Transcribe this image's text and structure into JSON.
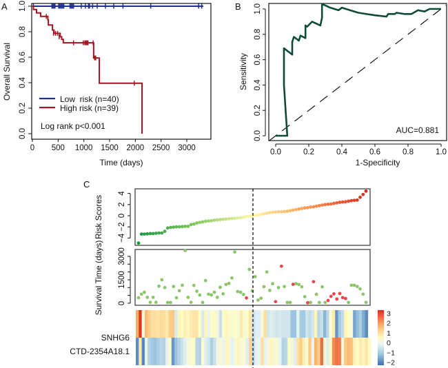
{
  "chart_data": [
    {
      "panel": "A",
      "type": "line",
      "subtype": "kaplan-meier",
      "title": "",
      "xlabel": "Time (days)",
      "ylabel": "Overall Survival",
      "xlim": [
        0,
        3400
      ],
      "ylim": [
        0,
        1
      ],
      "xticks": [
        0,
        500,
        1000,
        1500,
        2000,
        2500,
        3000
      ],
      "yticks": [
        "0.0",
        "0.2",
        "0.4",
        "0.6",
        "0.8",
        "1.0"
      ],
      "legend": {
        "placement": "bottom-left",
        "entries": [
          "Low  risk (n=40)",
          "High risk (n=39)"
        ]
      },
      "annotation": "Log rank p<0.001",
      "series": [
        {
          "name": "Low  risk (n=40)",
          "color": "#1f2f8f",
          "steps": [
            [
              0,
              1.0
            ],
            [
              3320,
              1.0
            ]
          ],
          "censor_times": [
            20,
            380,
            400,
            420,
            440,
            510,
            530,
            550,
            570,
            590,
            610,
            730,
            750,
            770,
            790,
            800,
            950,
            1030,
            1090,
            1110,
            1170,
            1260,
            1420,
            1580,
            1760,
            2300,
            3230,
            3290
          ]
        },
        {
          "name": "High risk (n=39)",
          "color": "#a31621",
          "steps": [
            [
              0,
              1.0
            ],
            [
              20,
              0.974
            ],
            [
              80,
              0.947
            ],
            [
              160,
              0.92
            ],
            [
              300,
              0.893
            ],
            [
              310,
              0.853
            ],
            [
              390,
              0.813
            ],
            [
              420,
              0.787
            ],
            [
              540,
              0.76
            ],
            [
              570,
              0.74
            ],
            [
              600,
              0.713
            ],
            [
              1180,
              0.713
            ],
            [
              1190,
              0.594
            ],
            [
              1290,
              0.594
            ],
            [
              1300,
              0.396
            ],
            [
              2130,
              0.396
            ],
            [
              2130,
              0.0
            ]
          ],
          "censor_times_values": [
            [
              270,
              0.92
            ],
            [
              410,
              0.787
            ],
            [
              450,
              0.787
            ],
            [
              490,
              0.787
            ],
            [
              520,
              0.76
            ],
            [
              800,
              0.713
            ],
            [
              990,
              0.713
            ],
            [
              1020,
              0.713
            ],
            [
              1040,
              0.713
            ],
            [
              1060,
              0.713
            ],
            [
              1080,
              0.713
            ],
            [
              1180,
              0.713
            ],
            [
              1210,
              0.594
            ],
            [
              1230,
              0.594
            ],
            [
              1980,
              0.396
            ]
          ]
        }
      ]
    },
    {
      "panel": "B",
      "type": "line",
      "subtype": "roc",
      "xlabel": "1-Specificity",
      "ylabel": "Sensitivity",
      "xlim": [
        0,
        1
      ],
      "ylim": [
        0,
        1
      ],
      "xticks": [
        "0.0",
        "0.2",
        "0.4",
        "0.6",
        "0.8",
        "1.0"
      ],
      "yticks": [
        "0.0",
        "0.2",
        "0.4",
        "0.6",
        "0.8",
        "1.0"
      ],
      "annotation": "AUC=0.881",
      "series": [
        {
          "name": "ROC",
          "color": "#0e4a3a",
          "points": [
            [
              0.0,
              0.0
            ],
            [
              0.07,
              0.0
            ],
            [
              0.05,
              0.4
            ],
            [
              0.05,
              0.69
            ],
            [
              0.1,
              0.64
            ],
            [
              0.1,
              0.74
            ],
            [
              0.11,
              0.78
            ],
            [
              0.14,
              0.75
            ],
            [
              0.15,
              0.79
            ],
            [
              0.18,
              0.77
            ],
            [
              0.18,
              0.87
            ],
            [
              0.19,
              0.86
            ],
            [
              0.22,
              0.9
            ],
            [
              0.27,
              0.87
            ],
            [
              0.28,
              0.93
            ],
            [
              0.28,
              1.04
            ],
            [
              0.33,
              1.01
            ],
            [
              0.38,
              0.99
            ],
            [
              0.4,
              1.01
            ],
            [
              0.45,
              0.99
            ],
            [
              0.5,
              0.97
            ],
            [
              0.55,
              0.96
            ],
            [
              0.6,
              0.95
            ],
            [
              0.67,
              0.94
            ],
            [
              0.68,
              0.96
            ],
            [
              0.72,
              0.96
            ],
            [
              0.73,
              0.97
            ],
            [
              0.78,
              0.96
            ],
            [
              0.82,
              0.96
            ],
            [
              0.86,
              0.99
            ],
            [
              0.9,
              0.98
            ],
            [
              0.93,
              1.0
            ],
            [
              0.97,
              1.0
            ],
            [
              1.0,
              1.0
            ]
          ]
        },
        {
          "name": "reference",
          "color": "#111111",
          "dashed": true,
          "points": [
            [
              0,
              0
            ],
            [
              1,
              1
            ]
          ]
        }
      ]
    },
    {
      "panel": "C-risk",
      "type": "scatter",
      "ylabel": "Risk Scores",
      "ylim": [
        -5,
        4.6
      ],
      "yticks": [
        4,
        2,
        0,
        -2,
        -4
      ],
      "cutoff_index": 39.5,
      "n": 79,
      "values": [
        -4.9,
        -3.3,
        -3.3,
        -3.25,
        -3.2,
        -3.2,
        -3.15,
        -3.1,
        -3.1,
        -2.8,
        -2.2,
        -2.1,
        -2.05,
        -2.0,
        -2.0,
        -1.95,
        -1.9,
        -1.9,
        -1.6,
        -1.5,
        -1.3,
        -1.2,
        -1.1,
        -1.0,
        -0.95,
        -0.9,
        -0.8,
        -0.75,
        -0.7,
        -0.65,
        -0.6,
        -0.55,
        -0.5,
        -0.45,
        -0.4,
        -0.35,
        -0.25,
        -0.15,
        -0.1,
        -0.05,
        0.05,
        0.15,
        0.25,
        0.35,
        0.45,
        0.55,
        0.6,
        0.65,
        0.7,
        0.7,
        0.75,
        0.8,
        0.9,
        1.0,
        1.1,
        1.2,
        1.3,
        1.4,
        1.45,
        1.55,
        1.6,
        1.7,
        1.8,
        1.9,
        2.0,
        2.05,
        2.1,
        2.2,
        2.3,
        2.4,
        2.45,
        2.5,
        2.6,
        2.7,
        2.75,
        2.8,
        3.3,
        3.8,
        4.4
      ]
    },
    {
      "panel": "C-survival",
      "type": "scatter",
      "ylabel": "Survival Time (days)",
      "ylim": [
        0,
        3400
      ],
      "yticks": [
        0,
        1500,
        3000
      ],
      "series": [
        {
          "name": "Alive",
          "color": "#8cc66a",
          "points": [
            [
              1,
              350
            ],
            [
              2,
              580
            ],
            [
              3,
              700
            ],
            [
              4,
              380
            ],
            [
              5,
              60
            ],
            [
              6,
              380
            ],
            [
              7,
              60
            ],
            [
              8,
              1090
            ],
            [
              9,
              1500
            ],
            [
              10,
              1000
            ],
            [
              11,
              50
            ],
            [
              12,
              50
            ],
            [
              13,
              1070
            ],
            [
              14,
              350
            ],
            [
              15,
              800
            ],
            [
              16,
              1150
            ],
            [
              17,
              3370
            ],
            [
              18,
              380
            ],
            [
              19,
              60
            ],
            [
              20,
              1140
            ],
            [
              21,
              770
            ],
            [
              22,
              520
            ],
            [
              23,
              50
            ],
            [
              24,
              1450
            ],
            [
              25,
              580
            ],
            [
              26,
              530
            ],
            [
              27,
              700
            ],
            [
              28,
              380
            ],
            [
              29,
              1020
            ],
            [
              30,
              600
            ],
            [
              31,
              1200
            ],
            [
              32,
              1270
            ],
            [
              33,
              1620
            ],
            [
              34,
              3280
            ],
            [
              35,
              750
            ],
            [
              36,
              700
            ],
            [
              37,
              560
            ],
            [
              38,
              2170
            ],
            [
              39,
              800
            ],
            [
              40,
              1700
            ],
            [
              41,
              200
            ],
            [
              42,
              320
            ],
            [
              43,
              1060
            ],
            [
              44,
              2000
            ],
            [
              45,
              820
            ],
            [
              46,
              1250
            ],
            [
              47,
              1000
            ],
            [
              48,
              1070
            ],
            [
              49,
              50
            ],
            [
              50,
              50
            ],
            [
              51,
              1250
            ],
            [
              52,
              1200
            ],
            [
              53,
              1050
            ],
            [
              54,
              420
            ],
            [
              55,
              50
            ],
            [
              56,
              570
            ],
            [
              57,
              50
            ],
            [
              58,
              1050
            ],
            [
              59,
              50
            ],
            [
              60,
              50
            ],
            [
              61,
              1150
            ],
            [
              62,
              1150
            ],
            [
              63,
              1070
            ],
            [
              64,
              920
            ],
            [
              65,
              580
            ],
            [
              66,
              50
            ]
          ]
        },
        {
          "name": "Dead",
          "color": "#e8464e",
          "points": [
            [
              1,
              340
            ],
            [
              2,
              100
            ],
            [
              3,
              2370
            ],
            [
              4,
              1210
            ],
            [
              5,
              30
            ],
            [
              6,
              1380
            ],
            [
              7,
              180
            ],
            [
              8,
              440
            ],
            [
              9,
              600
            ],
            [
              10,
              270
            ],
            [
              11,
              620
            ],
            [
              12,
              360
            ],
            [
              13,
              300
            ]
          ]
        }
      ],
      "dead_x_index": [
        37,
        47,
        49,
        53,
        58,
        60,
        65,
        66,
        67,
        68,
        69,
        70,
        71
      ]
    },
    {
      "panel": "C-heatmap",
      "type": "heatmap",
      "rows": [
        "SNHG6",
        "CTD-2354A18.1"
      ],
      "colorbar": {
        "ticks": [
          "3",
          "2",
          "1",
          "0",
          "−1",
          "−2"
        ],
        "range": [
          -2.3,
          3.3
        ],
        "colors": [
          "#3a6fb0",
          "#9ec6e0",
          "#e8f4f2",
          "#fffcc4",
          "#fdc27a",
          "#f47a4a",
          "#d7301f"
        ]
      },
      "values": [
        [
          1.8,
          3.2,
          0.2,
          1.6,
          1.3,
          1.0,
          1.0,
          0.9,
          1.1,
          1.0,
          0.8,
          1.3,
          1.4,
          -0.4,
          0.6,
          0.5,
          0.7,
          0.6,
          0.8,
          0.9,
          0.9,
          0.5,
          -0.4,
          0.6,
          -0.2,
          0.5,
          0.4,
          0.1,
          -0.6,
          0.5,
          0.6,
          0.4,
          0.3,
          0.5,
          0.2,
          0.8,
          0.3,
          0.5,
          0.9,
          -0.6,
          -0.3,
          -0.3,
          0.2,
          1.0,
          -0.5,
          -0.3,
          -0.4,
          -0.5,
          -0.4,
          -0.5,
          -0.5,
          -0.5,
          -1.2,
          -1.2,
          -0.2,
          -1.0,
          -1.1,
          -0.5,
          -0.7,
          -0.5,
          0.6,
          -0.8,
          -0.6,
          -1.4,
          -0.8,
          0.3,
          0.8,
          -1.8,
          -1.1,
          -0.7,
          0.6,
          0.5,
          0.2,
          -1.6,
          -1.3,
          -1.0,
          -1.5,
          -1.9
        ],
        [
          -1.9,
          0.8,
          -2.0,
          -0.2,
          -0.9,
          -1.1,
          -1.2,
          -1.0,
          -0.8,
          -0.9,
          -0.2,
          0.4,
          -1.8,
          -1.2,
          -0.9,
          -0.6,
          -0.3,
          0.2,
          0.3,
          0.5,
          -0.8,
          -0.9,
          0.4,
          -0.3,
          -0.5,
          -1.0,
          -0.6,
          0.1,
          0.2,
          -0.1,
          0.6,
          0.2,
          -0.2,
          0.3,
          0.6,
          0.2,
          0.3,
          -0.3,
          1.2,
          -0.8,
          -0.2,
          -0.1,
          1.0,
          -0.2,
          0.2,
          0.6,
          0.2,
          0.3,
          -0.2,
          -0.9,
          -0.8,
          0.5,
          0.2,
          -0.3,
          1.0,
          1.3,
          0.7,
          0.3,
          1.4,
          -0.2,
          1.7,
          1.3,
          2.6,
          0.3,
          -0.3,
          0.6,
          2.2,
          2.5,
          2.4,
          0.2,
          1.4,
          1.6,
          1.5,
          0.7,
          0.5,
          0.8,
          0.6,
          0.9,
          0.4
        ]
      ]
    }
  ],
  "panel_labels": {
    "a": "A",
    "b": "B",
    "c": "C"
  }
}
